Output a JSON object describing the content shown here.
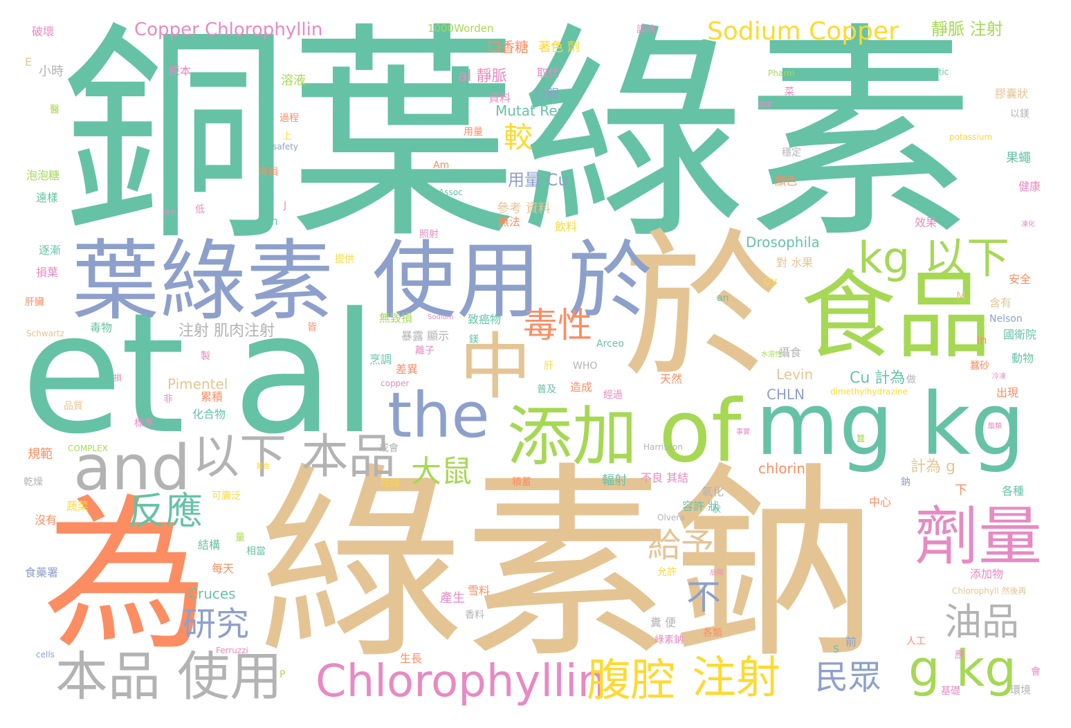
{
  "palette": {
    "green": "#66c2a5",
    "orange": "#fc8d62",
    "blue": "#8da0cb",
    "pink": "#e78ac3",
    "lime": "#a6d854",
    "yellow": "#ffd92f",
    "tan": "#e5c494",
    "gray": "#b3b3b3"
  },
  "words": [
    {
      "text": "銅葉綠素",
      "color": "green"
    },
    {
      "text": "綠素鈉",
      "color": "tan"
    },
    {
      "text": "et al",
      "color": "green"
    },
    {
      "text": "於",
      "color": "tan"
    },
    {
      "text": "為",
      "color": "orange"
    },
    {
      "text": "mg kg",
      "color": "green"
    },
    {
      "text": "葉綠素",
      "color": "blue"
    },
    {
      "text": "使用 於",
      "color": "blue"
    },
    {
      "text": "食品",
      "color": "lime"
    },
    {
      "text": "of",
      "color": "lime"
    },
    {
      "text": "添加",
      "color": "lime"
    },
    {
      "text": "中",
      "color": "tan"
    },
    {
      "text": "the",
      "color": "blue"
    },
    {
      "text": "and",
      "color": "gray"
    },
    {
      "text": "劑量",
      "color": "pink"
    },
    {
      "text": "本品 使用",
      "color": "gray"
    },
    {
      "text": "以下 本品",
      "color": "gray"
    },
    {
      "text": "Chlorophyllin",
      "color": "pink"
    },
    {
      "text": "腹腔",
      "color": "yellow"
    },
    {
      "text": "注射",
      "color": "yellow"
    },
    {
      "text": "g kg",
      "color": "lime"
    },
    {
      "text": "kg 以下",
      "color": "lime"
    },
    {
      "text": "Sodium Copper",
      "color": "yellow"
    },
    {
      "text": "反應",
      "color": "green"
    },
    {
      "text": "毒性",
      "color": "orange"
    },
    {
      "text": "油品",
      "color": "gray"
    },
    {
      "text": "研究",
      "color": "blue"
    },
    {
      "text": "民眾",
      "color": "blue"
    },
    {
      "text": "給予",
      "color": "tan"
    },
    {
      "text": "大鼠",
      "color": "lime"
    },
    {
      "text": "不",
      "color": "blue"
    },
    {
      "text": "較",
      "color": "yellow"
    },
    {
      "text": "Copper Chlorophyllin",
      "color": "pink"
    },
    {
      "text": "靜脈 注射",
      "color": "lime"
    },
    {
      "text": "用量 Cu",
      "color": "blue"
    },
    {
      "text": "口香糖",
      "color": "orange"
    },
    {
      "text": "著色 劑",
      "color": "yellow"
    },
    {
      "text": "al 靜脈",
      "color": "pink"
    },
    {
      "text": "Mutat Res",
      "color": "green"
    },
    {
      "text": "注射 肌肉注射",
      "color": "gray"
    },
    {
      "text": "Cu 計為",
      "color": "green"
    },
    {
      "text": "計為 g",
      "color": "tan"
    },
    {
      "text": "Drosophila",
      "color": "green"
    },
    {
      "text": "Cruces",
      "color": "green"
    },
    {
      "text": "Pimentel",
      "color": "tan"
    },
    {
      "text": "chlorin",
      "color": "orange"
    },
    {
      "text": "Levin",
      "color": "tan"
    },
    {
      "text": "CHLN",
      "color": "blue"
    },
    {
      "text": "1000Worden",
      "color": "lime"
    },
    {
      "text": "破壞",
      "color": "pink"
    },
    {
      "text": "小時",
      "color": "gray"
    },
    {
      "text": "原本",
      "color": "pink"
    },
    {
      "text": "溶液",
      "color": "lime"
    },
    {
      "text": "資料",
      "color": "pink"
    },
    {
      "text": "口服",
      "color": "blue"
    },
    {
      "text": "取代",
      "color": "pink"
    },
    {
      "text": "膠囊狀",
      "color": "tan"
    },
    {
      "text": "以鎂",
      "color": "gray"
    },
    {
      "text": "果蠅",
      "color": "green"
    },
    {
      "text": "健康",
      "color": "pink"
    },
    {
      "text": "顏色",
      "color": "orange"
    },
    {
      "text": "穩定",
      "color": "gray"
    },
    {
      "text": "參考 資料",
      "color": "tan"
    },
    {
      "text": "無法",
      "color": "orange"
    },
    {
      "text": "飲料",
      "color": "yellow"
    },
    {
      "text": "效果",
      "color": "pink"
    },
    {
      "text": "安全",
      "color": "orange"
    },
    {
      "text": "含有",
      "color": "tan"
    },
    {
      "text": "國衛院",
      "color": "green"
    },
    {
      "text": "動物",
      "color": "green"
    },
    {
      "text": "蠶砂",
      "color": "orange"
    },
    {
      "text": "出現",
      "color": "orange"
    },
    {
      "text": "各種",
      "color": "green"
    },
    {
      "text": "中心",
      "color": "orange"
    },
    {
      "text": "下",
      "color": "orange"
    },
    {
      "text": "添加物",
      "color": "pink"
    },
    {
      "text": "環境",
      "color": "gray"
    },
    {
      "text": "基礎",
      "color": "pink"
    },
    {
      "text": "人工",
      "color": "orange"
    },
    {
      "text": "前",
      "color": "blue"
    },
    {
      "text": "各類",
      "color": "orange"
    },
    {
      "text": "綠素鈉",
      "color": "pink"
    },
    {
      "text": "生長",
      "color": "orange"
    },
    {
      "text": "產生",
      "color": "pink"
    },
    {
      "text": "雪料",
      "color": "orange"
    },
    {
      "text": "允許",
      "color": "yellow"
    },
    {
      "text": "容許 狀",
      "color": "green"
    },
    {
      "text": "氧化",
      "color": "gray"
    },
    {
      "text": "輻射",
      "color": "green"
    },
    {
      "text": "不良 其結",
      "color": "pink"
    },
    {
      "text": "積蓄",
      "color": "orange"
    },
    {
      "text": "防腐",
      "color": "yellow"
    },
    {
      "text": "累積",
      "color": "orange"
    },
    {
      "text": "化合物",
      "color": "green"
    },
    {
      "text": "結構",
      "color": "green"
    },
    {
      "text": "相當",
      "color": "green"
    },
    {
      "text": "每天",
      "color": "orange"
    },
    {
      "text": "標準",
      "color": "pink"
    },
    {
      "text": "規範",
      "color": "orange"
    },
    {
      "text": "蔬菜",
      "color": "yellow"
    },
    {
      "text": "沒有",
      "color": "orange"
    },
    {
      "text": "食藥署",
      "color": "blue"
    },
    {
      "text": "乾燥",
      "color": "gray"
    },
    {
      "text": "可廣泛",
      "color": "yellow"
    },
    {
      "text": "毒物",
      "color": "green"
    },
    {
      "text": "肝臟",
      "color": "orange"
    },
    {
      "text": "損葉",
      "color": "pink"
    },
    {
      "text": "逐漸",
      "color": "green"
    },
    {
      "text": "泡泡糖",
      "color": "lime"
    },
    {
      "text": "遠樣",
      "color": "green"
    },
    {
      "text": "有損",
      "color": "orange"
    },
    {
      "text": "低",
      "color": "pink"
    },
    {
      "text": "過程",
      "color": "orange"
    },
    {
      "text": "上",
      "color": "yellow"
    },
    {
      "text": "用量",
      "color": "orange"
    },
    {
      "text": "照射",
      "color": "pink"
    },
    {
      "text": "對 水果",
      "color": "tan"
    },
    {
      "text": "提供",
      "color": "yellow"
    },
    {
      "text": "無毀損",
      "color": "lime"
    },
    {
      "text": "致癌物",
      "color": "green"
    },
    {
      "text": "暴露 顯示",
      "color": "gray"
    },
    {
      "text": "離子",
      "color": "pink"
    },
    {
      "text": "烹調",
      "color": "green"
    },
    {
      "text": "差異",
      "color": "orange"
    },
    {
      "text": "肝",
      "color": "yellow"
    },
    {
      "text": "普及",
      "color": "green"
    },
    {
      "text": "造成",
      "color": "orange"
    },
    {
      "text": "經過",
      "color": "pink"
    },
    {
      "text": "天然",
      "color": "orange"
    },
    {
      "text": "糞 便",
      "color": "gray"
    },
    {
      "text": "攝食",
      "color": "gray"
    },
    {
      "text": "Schwartz",
      "color": "tan"
    },
    {
      "text": "Arceo",
      "color": "green"
    },
    {
      "text": "Nelson",
      "color": "blue"
    },
    {
      "text": "Harrisson",
      "color": "gray"
    },
    {
      "text": "Olvera",
      "color": "gray"
    },
    {
      "text": "Ferruzzi",
      "color": "pink"
    },
    {
      "text": "COMPLEX",
      "color": "lime"
    },
    {
      "text": "WHO",
      "color": "gray"
    },
    {
      "text": "safety",
      "color": "blue"
    },
    {
      "text": "Assoc",
      "color": "green"
    },
    {
      "text": "Pharm",
      "color": "lime"
    },
    {
      "text": "somatic",
      "color": "green"
    },
    {
      "text": "potassium",
      "color": "yellow"
    },
    {
      "text": "Sodium",
      "color": "pink"
    },
    {
      "text": "copper",
      "color": "pink"
    },
    {
      "text": "dimethylhydrazine",
      "color": "yellow"
    },
    {
      "text": "Chlorophyll 然後再",
      "color": "tan"
    },
    {
      "text": "cells",
      "color": "blue"
    },
    {
      "text": "Gy",
      "color": "yellow"
    },
    {
      "text": "Am",
      "color": "orange"
    },
    {
      "text": "on",
      "color": "green"
    },
    {
      "text": "an",
      "color": "green"
    },
    {
      "text": "in",
      "color": "orange"
    },
    {
      "text": "M",
      "color": "tan"
    },
    {
      "text": "J",
      "color": "pink"
    },
    {
      "text": "S",
      "color": "green"
    },
    {
      "text": "P",
      "color": "lime"
    },
    {
      "text": "E",
      "color": "tan"
    },
    {
      "text": "調味",
      "color": "pink"
    },
    {
      "text": "製",
      "color": "pink"
    },
    {
      "text": "非",
      "color": "pink"
    },
    {
      "text": "量",
      "color": "lime"
    },
    {
      "text": "或會",
      "color": "gray"
    },
    {
      "text": "品質",
      "color": "tan"
    },
    {
      "text": "皆",
      "color": "orange"
    },
    {
      "text": "鎂",
      "color": "green"
    },
    {
      "text": "損",
      "color": "pink"
    },
    {
      "text": "做",
      "color": "gray"
    },
    {
      "text": "鈉",
      "color": "blue"
    },
    {
      "text": "會",
      "color": "pink"
    },
    {
      "text": "應",
      "color": "pink"
    },
    {
      "text": "狀",
      "color": "green"
    },
    {
      "text": "蠶",
      "color": "lime"
    },
    {
      "text": "醫",
      "color": "lime"
    },
    {
      "text": "菜",
      "color": "pink"
    },
    {
      "text": "水溶性",
      "color": "lime"
    },
    {
      "text": "冷凍",
      "color": "pink"
    },
    {
      "text": "酯類",
      "color": "pink"
    },
    {
      "text": "事實",
      "color": "pink"
    },
    {
      "text": "局限",
      "color": "pink"
    },
    {
      "text": "凍化",
      "color": "pink"
    },
    {
      "text": "無色",
      "color": "pink"
    },
    {
      "text": "香料",
      "color": "gray"
    },
    {
      "text": "糖果",
      "color": "pink"
    },
    {
      "text": "黃金",
      "color": "yellow"
    }
  ]
}
